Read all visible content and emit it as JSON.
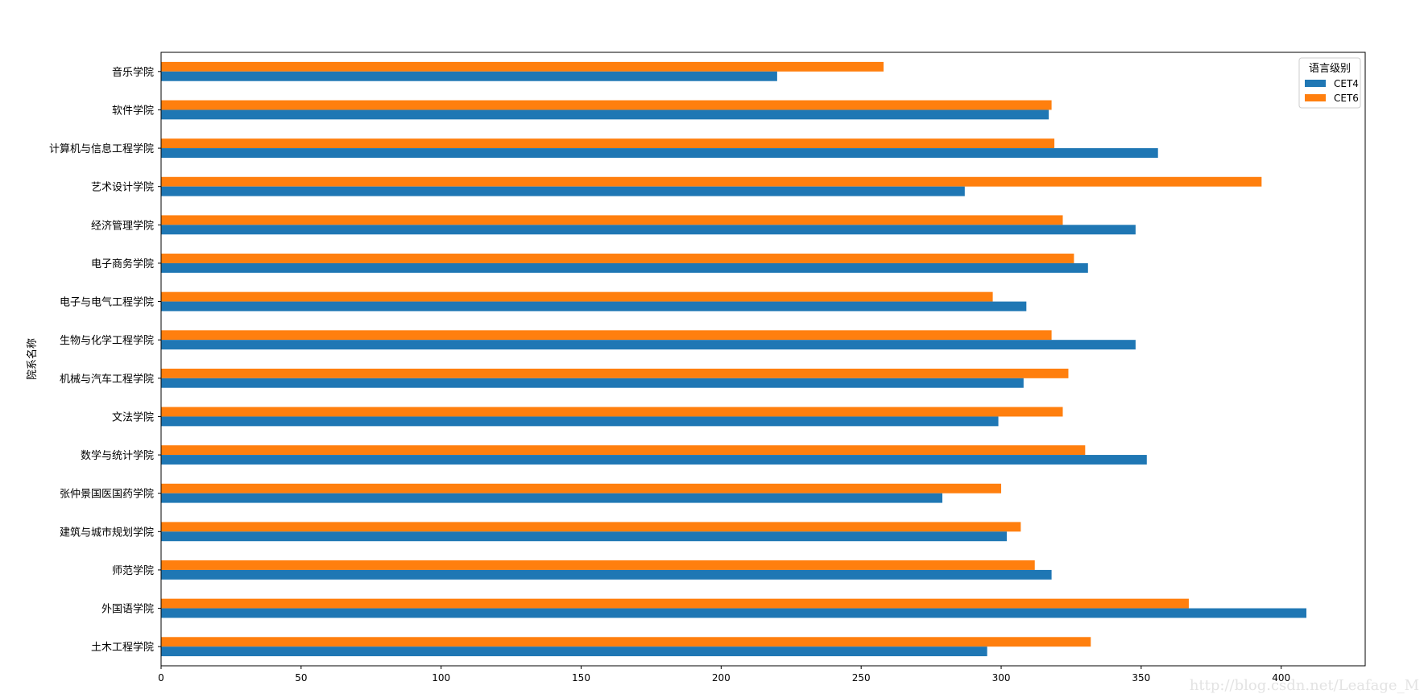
{
  "chart_data": {
    "type": "bar",
    "orientation": "horizontal",
    "title": "",
    "xlabel": "",
    "ylabel": "院系名称",
    "xlim": [
      0,
      430
    ],
    "xticks": [
      0,
      50,
      100,
      150,
      200,
      250,
      300,
      350,
      400
    ],
    "grid": false,
    "legend": {
      "title": "语言级别",
      "position": "top-right"
    },
    "categories": [
      "土木工程学院",
      "外国语学院",
      "师范学院",
      "建筑与城市规划学院",
      "张仲景国医国药学院",
      "数学与统计学院",
      "文法学院",
      "机械与汽车工程学院",
      "生物与化学工程学院",
      "电子与电气工程学院",
      "电子商务学院",
      "经济管理学院",
      "艺术设计学院",
      "计算机与信息工程学院",
      "软件学院",
      "音乐学院"
    ],
    "series": [
      {
        "name": "CET4",
        "color": "#1f77b4",
        "values": [
          295,
          409,
          318,
          302,
          279,
          352,
          299,
          308,
          348,
          309,
          331,
          348,
          287,
          356,
          317,
          220
        ]
      },
      {
        "name": "CET6",
        "color": "#ff7f0e",
        "values": [
          332,
          367,
          312,
          307,
          300,
          330,
          322,
          324,
          318,
          297,
          326,
          322,
          393,
          319,
          318,
          258
        ]
      }
    ]
  },
  "watermark": "http://blog.csdn.net/Leafage_M"
}
